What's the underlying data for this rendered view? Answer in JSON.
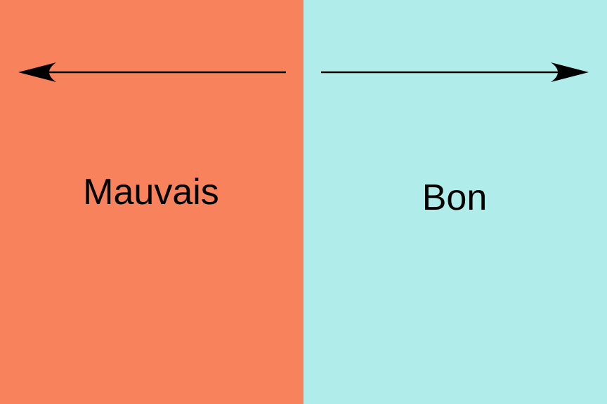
{
  "colors": {
    "bad_panel": "#F7825B",
    "good_panel": "#B0EDEA",
    "arrow": "#000000",
    "text": "#000000"
  },
  "left_panel": {
    "label": "Mauvais",
    "arrow_icon": "arrow-left-icon"
  },
  "right_panel": {
    "label": "Bon",
    "arrow_icon": "arrow-right-icon"
  }
}
